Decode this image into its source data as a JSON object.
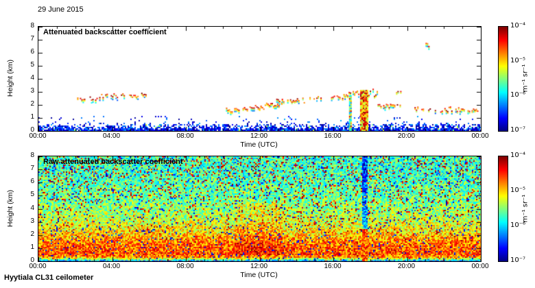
{
  "page": {
    "date_label": "29 June 2015",
    "footer_label": "Hyytiala CL31 ceilometer"
  },
  "colors": {
    "background": "#ffffff",
    "axis": "#000000",
    "colormap": "jet"
  },
  "chart_data": [
    {
      "type": "heatmap",
      "title": "Attenuated backscatter coefficient",
      "xlabel": "Time (UTC)",
      "ylabel": "Height (km)",
      "xlim_hours": [
        0,
        24
      ],
      "ylim_km": [
        0,
        8
      ],
      "x_tick_hours": [
        0,
        4,
        8,
        12,
        16,
        20,
        24
      ],
      "x_tick_labels": [
        "00:00",
        "04:00",
        "08:00",
        "12:00",
        "16:00",
        "20:00",
        "00:00"
      ],
      "y_tick_values": [
        0,
        1,
        2,
        3,
        4,
        5,
        6,
        7,
        8
      ],
      "grid": false,
      "colorbar": {
        "scale": "log10",
        "min": 1e-07,
        "max": 0.0001,
        "ticks": [
          "10⁻⁴",
          "10⁻⁵",
          "10⁻⁶",
          "10⁻⁷"
        ],
        "unit": "m⁻¹ sr⁻¹",
        "position": "right"
      },
      "boundary_layer": {
        "top_km": 0.75,
        "description": "dense blue aerosol/noise layer near surface all day"
      },
      "clouds": [
        [
          2.1,
          2.5,
          2.3,
          2.6
        ],
        [
          2.7,
          3.3,
          2.4,
          2.7
        ],
        [
          3.4,
          4.1,
          2.6,
          3.0
        ],
        [
          4.1,
          5.4,
          2.6,
          2.9
        ],
        [
          5.5,
          5.8,
          2.8,
          3.0
        ],
        [
          10.1,
          10.9,
          1.5,
          1.8
        ],
        [
          11.0,
          12.2,
          1.7,
          2.0
        ],
        [
          12.2,
          13.2,
          1.9,
          2.3
        ],
        [
          12.9,
          14.4,
          2.2,
          2.6
        ],
        [
          14.7,
          15.3,
          2.5,
          2.7
        ],
        [
          15.8,
          16.6,
          2.5,
          2.9
        ],
        [
          16.6,
          17.4,
          2.7,
          3.1
        ],
        [
          17.9,
          18.4,
          2.7,
          3.3
        ],
        [
          18.4,
          19.6,
          1.8,
          2.1
        ],
        [
          19.4,
          19.7,
          2.9,
          3.1
        ],
        [
          20.4,
          21.3,
          1.6,
          1.9
        ],
        [
          21.5,
          23.1,
          1.5,
          1.9
        ],
        [
          23.2,
          23.8,
          1.5,
          1.8
        ],
        [
          21.0,
          21.2,
          6.5,
          6.8
        ]
      ],
      "precip_columns": [
        {
          "t0": 16.85,
          "t1": 16.98,
          "h_top": 2.8,
          "value": 0.45
        },
        {
          "t0": 17.45,
          "t1": 17.85,
          "h_top": 3.2,
          "value": 0.7
        }
      ]
    },
    {
      "type": "heatmap",
      "title": "Raw attenuated backscatter coefficient",
      "xlabel": "Time (UTC)",
      "ylabel": "Height (km)",
      "xlim_hours": [
        0,
        24
      ],
      "ylim_km": [
        0,
        8
      ],
      "x_tick_hours": [
        0,
        4,
        8,
        12,
        16,
        20,
        24
      ],
      "x_tick_labels": [
        "00:00",
        "04:00",
        "08:00",
        "12:00",
        "16:00",
        "20:00",
        "00:00"
      ],
      "y_tick_values": [
        0,
        1,
        2,
        3,
        4,
        5,
        6,
        7,
        8
      ],
      "grid": false,
      "colorbar": {
        "scale": "log10",
        "min": 1e-07,
        "max": 0.0001,
        "ticks": [
          "10⁻⁴",
          "10⁻⁵",
          "10⁻⁶",
          "10⁻⁷"
        ],
        "unit": "m⁻¹ sr⁻¹",
        "position": "right"
      },
      "profile_km_value": [
        [
          0,
          0.1
        ],
        [
          0.15,
          0.45
        ],
        [
          0.35,
          0.72
        ],
        [
          0.6,
          0.8
        ],
        [
          1.4,
          0.76
        ],
        [
          2.2,
          0.66
        ],
        [
          3.0,
          0.58
        ],
        [
          4.0,
          0.52
        ],
        [
          5.0,
          0.48
        ],
        [
          6.0,
          0.46
        ],
        [
          7.0,
          0.44
        ],
        [
          8.0,
          0.44
        ]
      ],
      "noise_amplitude": 0.15,
      "blue_speckle_prob": 0.05,
      "red_speckle_prob_bottom": 0.015,
      "red_speckle_prob_top": 0.12,
      "bands": [
        {
          "t0": 10.6,
          "t1": 13.2,
          "h0": 0.5,
          "h1": 4.5,
          "boost": 0.06
        }
      ],
      "stripe": {
        "t0": 17.5,
        "t1": 17.85,
        "h_top": 2.5,
        "description": "strong precipitation column"
      }
    }
  ]
}
